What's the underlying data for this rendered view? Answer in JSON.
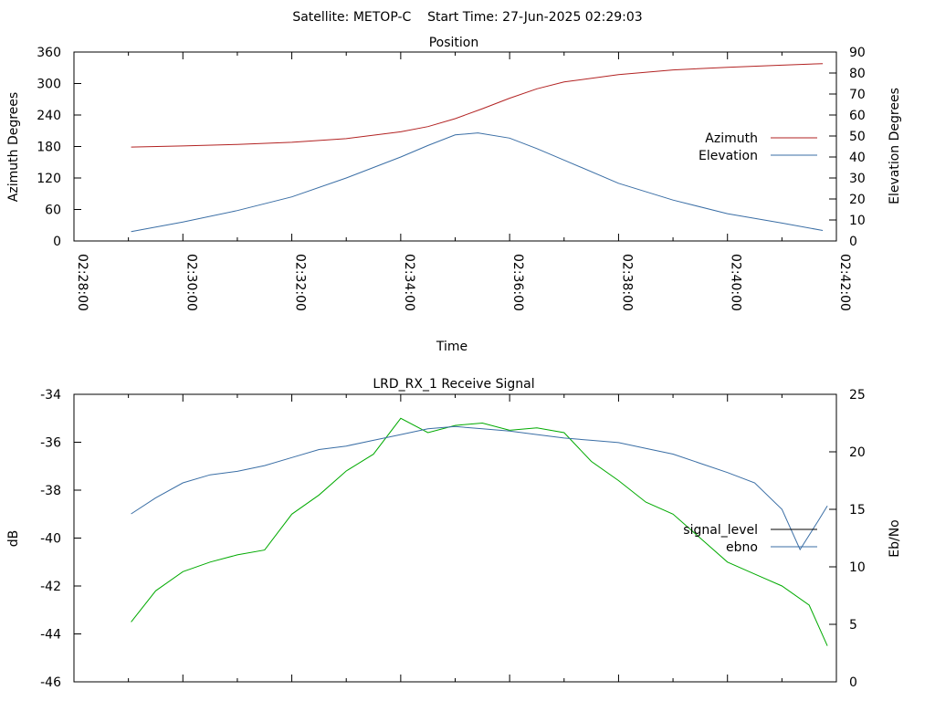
{
  "figure": {
    "title": "Satellite: METOP-C    Start Time: 27-Jun-2025 02:29:03"
  },
  "chart_data": [
    {
      "type": "line",
      "title": "Position",
      "xlabel": "Time",
      "ylabel": "Azimuth Degrees",
      "y2label": "Elevation Degrees",
      "xlim": [
        "02:28:00",
        "02:42:00"
      ],
      "x_ticks": [
        "02:28:00",
        "02:30:00",
        "02:32:00",
        "02:34:00",
        "02:36:00",
        "02:38:00",
        "02:40:00",
        "02:42:00"
      ],
      "ylim": [
        0,
        360
      ],
      "y_ticks": [
        "0",
        "60",
        "120",
        "180",
        "240",
        "300",
        "360"
      ],
      "y2lim": [
        0,
        90
      ],
      "y2_ticks": [
        "0",
        "10",
        "20",
        "30",
        "40",
        "50",
        "60",
        "70",
        "80",
        "90"
      ],
      "legend_position": "right",
      "grid": false,
      "series": [
        {
          "name": "Azimuth",
          "axis": "left",
          "color": "#b22222",
          "x": [
            "02:29:03",
            "02:30:00",
            "02:31:00",
            "02:32:00",
            "02:33:00",
            "02:34:00",
            "02:34:30",
            "02:35:00",
            "02:35:30",
            "02:36:00",
            "02:36:30",
            "02:37:00",
            "02:38:00",
            "02:39:00",
            "02:40:00",
            "02:41:00",
            "02:41:45"
          ],
          "values": [
            179,
            181,
            184,
            188,
            195,
            208,
            218,
            233,
            252,
            272,
            290,
            303,
            317,
            326,
            331,
            335,
            338
          ]
        },
        {
          "name": "Elevation",
          "axis": "right",
          "color": "#3a6ea5",
          "x": [
            "02:29:03",
            "02:30:00",
            "02:31:00",
            "02:32:00",
            "02:33:00",
            "02:34:00",
            "02:34:30",
            "02:35:00",
            "02:35:25",
            "02:36:00",
            "02:36:30",
            "02:37:00",
            "02:38:00",
            "02:39:00",
            "02:40:00",
            "02:41:00",
            "02:41:45"
          ],
          "values": [
            4.5,
            9,
            14.5,
            21,
            30,
            40,
            45.5,
            50.5,
            51.5,
            49,
            44,
            38.5,
            27.5,
            19.5,
            13,
            8.5,
            5
          ]
        }
      ]
    },
    {
      "type": "line",
      "title": "LRD_RX_1 Receive Signal",
      "xlabel": "",
      "ylabel": "dB",
      "y2label": "Eb/No",
      "xlim": [
        "02:28:00",
        "02:42:00"
      ],
      "ylim": [
        -46,
        -34
      ],
      "y_ticks": [
        "-34",
        "-36",
        "-38",
        "-40",
        "-42",
        "-44",
        "-46"
      ],
      "y2lim": [
        0,
        25
      ],
      "y2_ticks": [
        "0",
        "5",
        "10",
        "15",
        "20",
        "25"
      ],
      "legend_position": "right",
      "grid": false,
      "series": [
        {
          "name": "signal_level",
          "axis": "left",
          "color": "#00aa00",
          "x": [
            "02:29:03",
            "02:29:30",
            "02:30:00",
            "02:30:30",
            "02:31:00",
            "02:31:30",
            "02:32:00",
            "02:32:30",
            "02:33:00",
            "02:33:30",
            "02:34:00",
            "02:34:30",
            "02:35:00",
            "02:35:30",
            "02:36:00",
            "02:36:30",
            "02:37:00",
            "02:37:30",
            "02:38:00",
            "02:38:30",
            "02:39:00",
            "02:39:30",
            "02:40:00",
            "02:40:30",
            "02:41:00",
            "02:41:30",
            "02:41:50"
          ],
          "values": [
            -43.5,
            -42.2,
            -41.4,
            -41.0,
            -40.7,
            -40.5,
            -39.0,
            -38.2,
            -37.2,
            -36.5,
            -35.0,
            -35.6,
            -35.3,
            -35.2,
            -35.5,
            -35.4,
            -35.6,
            -36.8,
            -37.6,
            -38.5,
            -39.0,
            -40.0,
            -41.0,
            -41.5,
            -42.0,
            -42.8,
            -44.5
          ]
        },
        {
          "name": "ebno",
          "axis": "right",
          "color": "#3a6ea5",
          "x": [
            "02:29:03",
            "02:29:30",
            "02:30:00",
            "02:30:30",
            "02:31:00",
            "02:31:30",
            "02:32:00",
            "02:32:30",
            "02:33:00",
            "02:33:30",
            "02:34:00",
            "02:34:30",
            "02:35:00",
            "02:35:30",
            "02:36:00",
            "02:36:30",
            "02:37:00",
            "02:37:30",
            "02:38:00",
            "02:38:30",
            "02:39:00",
            "02:39:30",
            "02:40:00",
            "02:40:30",
            "02:41:00",
            "02:41:20",
            "02:41:40",
            "02:41:50"
          ],
          "values": [
            14.6,
            16.0,
            17.3,
            18.0,
            18.3,
            18.8,
            19.5,
            20.2,
            20.5,
            21.0,
            21.5,
            22.0,
            22.2,
            22.0,
            21.8,
            21.5,
            21.2,
            21.0,
            20.8,
            20.3,
            19.8,
            19.0,
            18.2,
            17.3,
            15.0,
            11.5,
            14.0,
            15.3
          ]
        }
      ]
    }
  ]
}
